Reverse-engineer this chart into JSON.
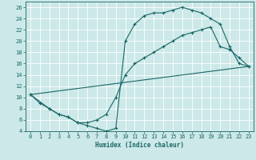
{
  "xlabel": "Humidex (Indice chaleur)",
  "bg_color": "#cce8e8",
  "line_color": "#1a6666",
  "grid_color": "#ffffff",
  "xlim": [
    -0.5,
    23.5
  ],
  "ylim": [
    4,
    27
  ],
  "xticks": [
    0,
    1,
    2,
    3,
    4,
    5,
    6,
    7,
    8,
    9,
    10,
    11,
    12,
    13,
    14,
    15,
    16,
    17,
    18,
    19,
    20,
    21,
    22,
    23
  ],
  "yticks": [
    4,
    6,
    8,
    10,
    12,
    14,
    16,
    18,
    20,
    22,
    24,
    26
  ],
  "line1_x": [
    0,
    1,
    2,
    3,
    4,
    5,
    6,
    7,
    8,
    9,
    10,
    11,
    12,
    13,
    14,
    15,
    16,
    17,
    18,
    19,
    20,
    21,
    22,
    23
  ],
  "line1_y": [
    10.5,
    9,
    8,
    7,
    6.5,
    5.5,
    5,
    4.5,
    4,
    4.5,
    20,
    23,
    24.5,
    25,
    25,
    25.5,
    26.0,
    25.5,
    25,
    24,
    23,
    19,
    16,
    15.5
  ],
  "line2_x": [
    0,
    2,
    3,
    4,
    5,
    6,
    7,
    8,
    9,
    10,
    11,
    12,
    13,
    14,
    15,
    16,
    17,
    18,
    19,
    20,
    21,
    22,
    23
  ],
  "line2_y": [
    10.5,
    8,
    7,
    6.5,
    5.5,
    5.5,
    6,
    7,
    10,
    14,
    16,
    17,
    18,
    19,
    20,
    21,
    21.5,
    22,
    22.5,
    19,
    18.5,
    17,
    15.5
  ],
  "line3_x": [
    0,
    23
  ],
  "line3_y": [
    10.5,
    15.5
  ]
}
